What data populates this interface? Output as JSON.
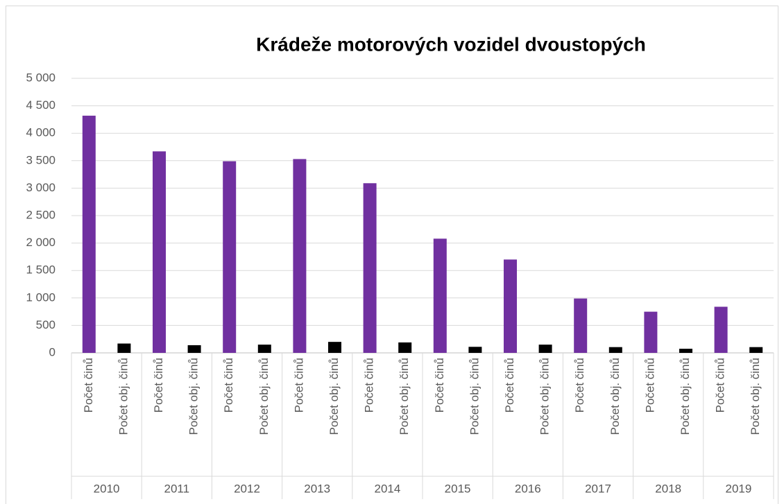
{
  "chart_data": {
    "type": "bar",
    "title": "Krádeže motorových vozidel dvoustopých",
    "categories": [
      "2010",
      "2011",
      "2012",
      "2013",
      "2014",
      "2015",
      "2016",
      "2017",
      "2018",
      "2019"
    ],
    "series": [
      {
        "name": "Počet činů",
        "color": "#7030a0",
        "values": [
          4320,
          3670,
          3490,
          3530,
          3090,
          2080,
          1700,
          990,
          750,
          840
        ]
      },
      {
        "name": "Počet obj. činů",
        "color": "#000000",
        "values": [
          170,
          140,
          150,
          200,
          190,
          110,
          150,
          105,
          75,
          105
        ]
      }
    ],
    "ylim": [
      0,
      5000
    ],
    "yticks": [
      0,
      500,
      {
        "value": 1000,
        "label": "1 000"
      },
      {
        "value": 1500,
        "label": "1 500"
      },
      {
        "value": 2000,
        "label": "2 000"
      },
      {
        "value": 2500,
        "label": "2 500"
      },
      {
        "value": 3000,
        "label": "3 000"
      },
      {
        "value": 3500,
        "label": "3 500"
      },
      {
        "value": 4000,
        "label": "4 000"
      },
      {
        "value": 4500,
        "label": "4 500"
      },
      {
        "value": 5000,
        "label": "5 000"
      }
    ],
    "grid": true
  }
}
